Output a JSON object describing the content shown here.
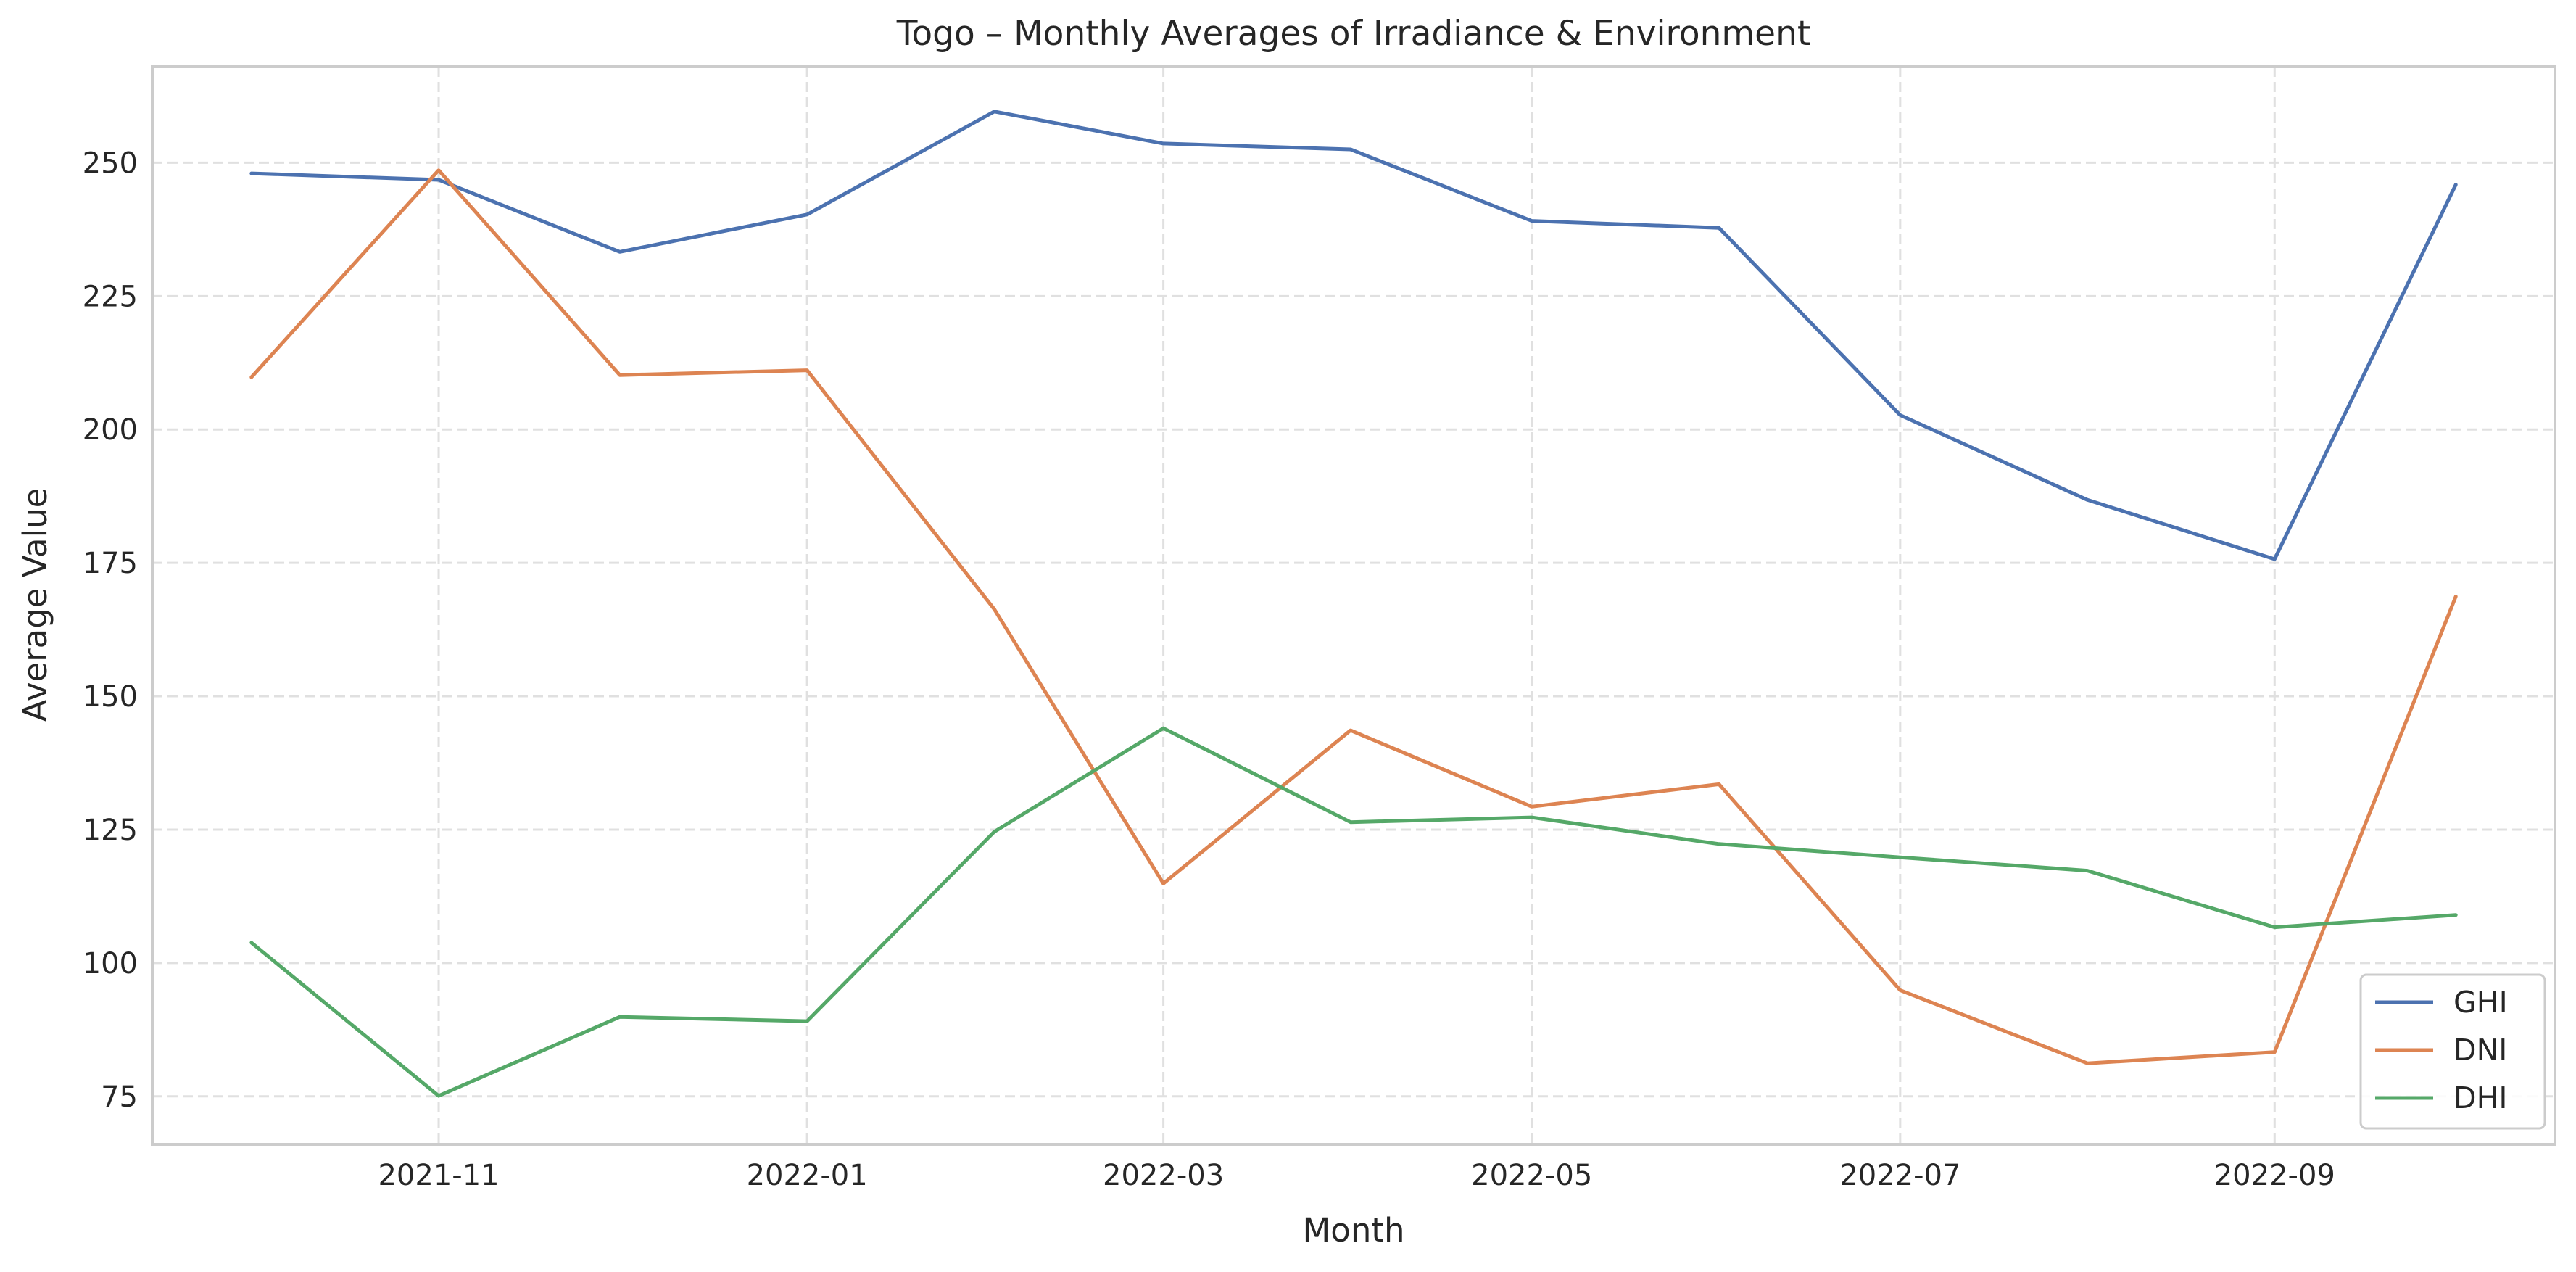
{
  "chart_data": {
    "type": "line",
    "title": "Togo – Monthly Averages of Irradiance & Environment",
    "xlabel": "Month",
    "ylabel": "Average Value",
    "x": [
      "2021-10",
      "2021-11",
      "2021-12",
      "2022-01",
      "2022-02",
      "2022-03",
      "2022-04",
      "2022-05",
      "2022-06",
      "2022-07",
      "2022-08",
      "2022-09",
      "2022-10"
    ],
    "x_ticks": [
      "2021-11",
      "2022-01",
      "2022-03",
      "2022-05",
      "2022-07",
      "2022-09"
    ],
    "y_ticks": [
      75,
      100,
      125,
      150,
      175,
      200,
      225,
      250
    ],
    "ylim": [
      66,
      268
    ],
    "grid": true,
    "legend_position": "lower-right",
    "series": [
      {
        "name": "GHI",
        "color": "#4c72b0",
        "values": [
          248.0,
          246.8,
          233.3,
          240.3,
          259.6,
          253.6,
          252.5,
          239.1,
          237.8,
          202.7,
          186.8,
          175.7,
          245.9
        ]
      },
      {
        "name": "DNI",
        "color": "#dd8452",
        "values": [
          209.8,
          248.6,
          210.2,
          211.1,
          166.3,
          114.9,
          143.6,
          129.3,
          133.5,
          94.9,
          81.2,
          83.3,
          168.7
        ]
      },
      {
        "name": "DHI",
        "color": "#55a868",
        "values": [
          103.8,
          75.1,
          89.9,
          89.1,
          124.6,
          144.0,
          126.4,
          127.3,
          122.3,
          119.8,
          117.3,
          106.7,
          109.0
        ]
      }
    ]
  }
}
